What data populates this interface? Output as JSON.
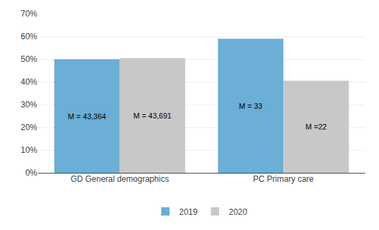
{
  "chart_data": {
    "type": "bar",
    "categories": [
      "GD General demographics",
      "PC Primary care"
    ],
    "series": [
      {
        "name": "2019",
        "color": "#6BAED6",
        "values": [
          0.5,
          0.59
        ],
        "annotations": [
          "M = 43,364",
          "M = 33"
        ]
      },
      {
        "name": "2020",
        "color": "#C8C8C8",
        "values": [
          0.505,
          0.405
        ],
        "annotations": [
          "M = 43,691",
          "M =22"
        ]
      }
    ],
    "ylim": [
      0,
      0.7
    ],
    "yticks": [
      {
        "value": 0.0,
        "label": "0%"
      },
      {
        "value": 0.1,
        "label": "10%"
      },
      {
        "value": 0.2,
        "label": "20%"
      },
      {
        "value": 0.3,
        "label": "30%"
      },
      {
        "value": 0.4,
        "label": "40%"
      },
      {
        "value": 0.5,
        "label": "50%"
      },
      {
        "value": 0.6,
        "label": "60%"
      },
      {
        "value": 0.7,
        "label": "70%"
      }
    ],
    "grid": true,
    "legend": "bottom"
  }
}
